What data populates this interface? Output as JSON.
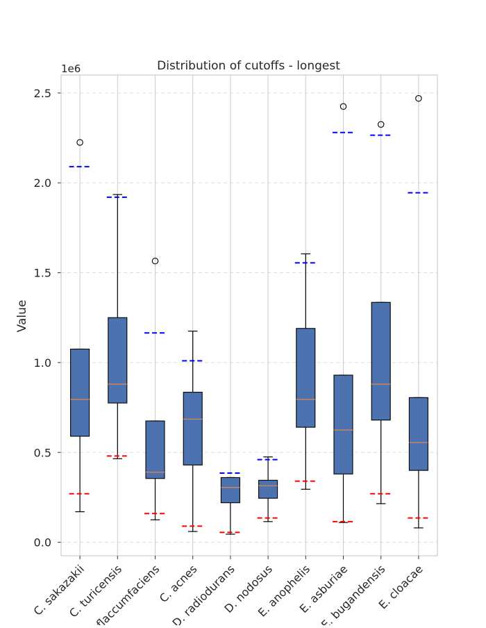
{
  "chart_data": {
    "type": "box",
    "title": "Distribution of cutoffs - longest",
    "ylabel": "Value",
    "xlabel": "",
    "y_multiplier_label": "1e6",
    "ylim": [
      -75000,
      2600000
    ],
    "yticks": [
      0,
      500000,
      1000000,
      1500000,
      2000000,
      2500000
    ],
    "ytick_labels": [
      "0.0",
      "0.5",
      "1.0",
      "1.5",
      "2.0",
      "2.5"
    ],
    "grid": true,
    "colors": {
      "box_fill": "#4c72b0",
      "median": "#dd8452",
      "whisker": "#000000",
      "upper_dash": "#0000ff",
      "lower_dash": "#ff0000",
      "grid": "#dddddd",
      "vgrid": "#cccccc"
    },
    "categories": [
      "C. sakazakii",
      "C. turicensis",
      "C. flaccumfaciens",
      "C. acnes",
      "D. radiodurans",
      "D. nodosus",
      "E. anophelis",
      "E. asburiae",
      "E. bugandensis",
      "E. cloacae"
    ],
    "boxes": [
      {
        "whislo": 170000,
        "q1": 590000,
        "med": 795000,
        "q3": 1075000,
        "whishi": 1075000,
        "fliers": [
          2225000
        ],
        "upper_dash": 2090000,
        "lower_dash": 270000
      },
      {
        "whislo": 465000,
        "q1": 775000,
        "med": 880000,
        "q3": 1250000,
        "whishi": 1935000,
        "fliers": [],
        "upper_dash": 1920000,
        "lower_dash": 480000
      },
      {
        "whislo": 125000,
        "q1": 355000,
        "med": 390000,
        "q3": 675000,
        "whishi": 675000,
        "fliers": [
          1565000
        ],
        "upper_dash": 1165000,
        "lower_dash": 160000
      },
      {
        "whislo": 60000,
        "q1": 430000,
        "med": 685000,
        "q3": 835000,
        "whishi": 1175000,
        "fliers": [],
        "upper_dash": 1010000,
        "lower_dash": 90000
      },
      {
        "whislo": 45000,
        "q1": 220000,
        "med": 305000,
        "q3": 360000,
        "whishi": 360000,
        "fliers": [],
        "upper_dash": 385000,
        "lower_dash": 55000
      },
      {
        "whislo": 115000,
        "q1": 245000,
        "med": 315000,
        "q3": 345000,
        "whishi": 475000,
        "fliers": [],
        "upper_dash": 460000,
        "lower_dash": 135000
      },
      {
        "whislo": 295000,
        "q1": 640000,
        "med": 795000,
        "q3": 1190000,
        "whishi": 1605000,
        "fliers": [],
        "upper_dash": 1555000,
        "lower_dash": 340000
      },
      {
        "whislo": 110000,
        "q1": 380000,
        "med": 625000,
        "q3": 930000,
        "whishi": 930000,
        "fliers": [
          2425000
        ],
        "upper_dash": 2280000,
        "lower_dash": 115000
      },
      {
        "whislo": 215000,
        "q1": 680000,
        "med": 880000,
        "q3": 1335000,
        "whishi": 1335000,
        "fliers": [
          2325000
        ],
        "upper_dash": 2265000,
        "lower_dash": 270000
      },
      {
        "whislo": 80000,
        "q1": 400000,
        "med": 555000,
        "q3": 805000,
        "whishi": 805000,
        "fliers": [
          2470000
        ],
        "upper_dash": 1945000,
        "lower_dash": 135000
      }
    ]
  }
}
